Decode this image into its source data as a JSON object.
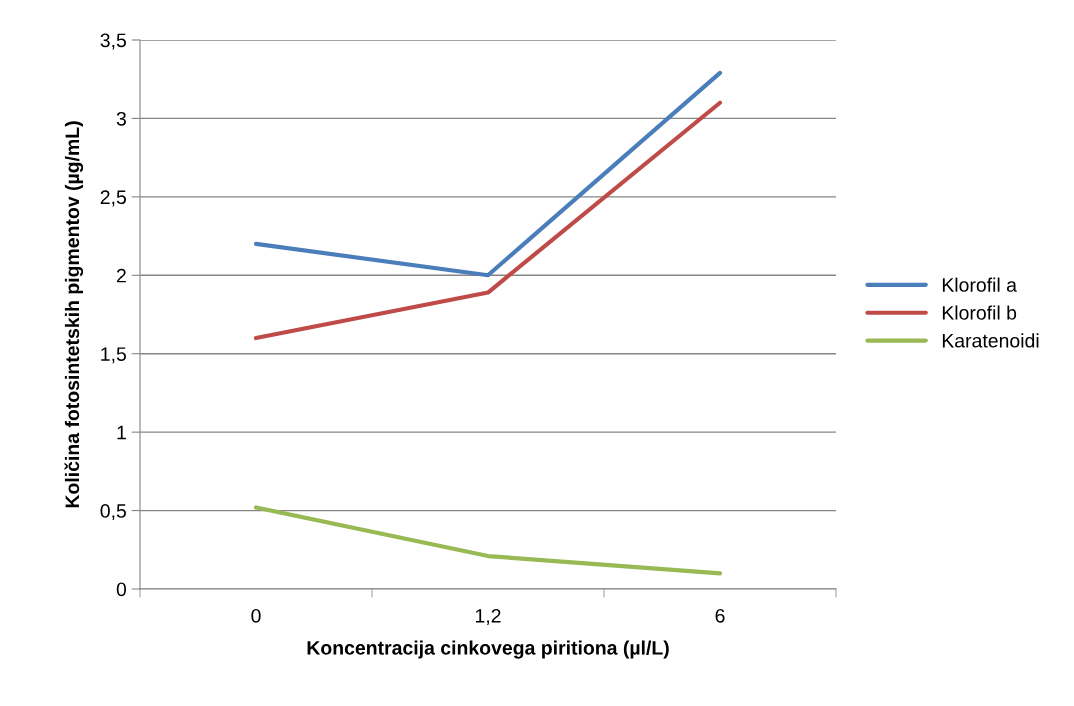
{
  "chart_data": {
    "type": "line",
    "xlabel": "Koncentracija cinkovega piritiona (µl/L)",
    "ylabel": "Količina fotosintetskih pigmentov (µg/mL)",
    "categories": [
      "0",
      "1,2",
      "6"
    ],
    "series": [
      {
        "name": "Klorofil a",
        "color": "#4a7ebb",
        "values": [
          2.2,
          2.0,
          3.29
        ]
      },
      {
        "name": "Klorofil b",
        "color": "#be4b48",
        "values": [
          1.6,
          1.89,
          3.1
        ]
      },
      {
        "name": "Karatenoidi",
        "color": "#98b954",
        "values": [
          0.52,
          0.21,
          0.1
        ]
      }
    ],
    "ylim": [
      0,
      3.5
    ],
    "yticks": [
      0,
      {
        "value": 0.5,
        "label": "0,5"
      },
      1,
      {
        "value": 1.5,
        "label": "1,5"
      },
      2,
      {
        "value": 2.5,
        "label": "2,5"
      },
      3,
      {
        "value": 3.5,
        "label": "3,5"
      }
    ],
    "grid": "y",
    "legend": "right",
    "marker": "none",
    "line_style": "solid"
  }
}
